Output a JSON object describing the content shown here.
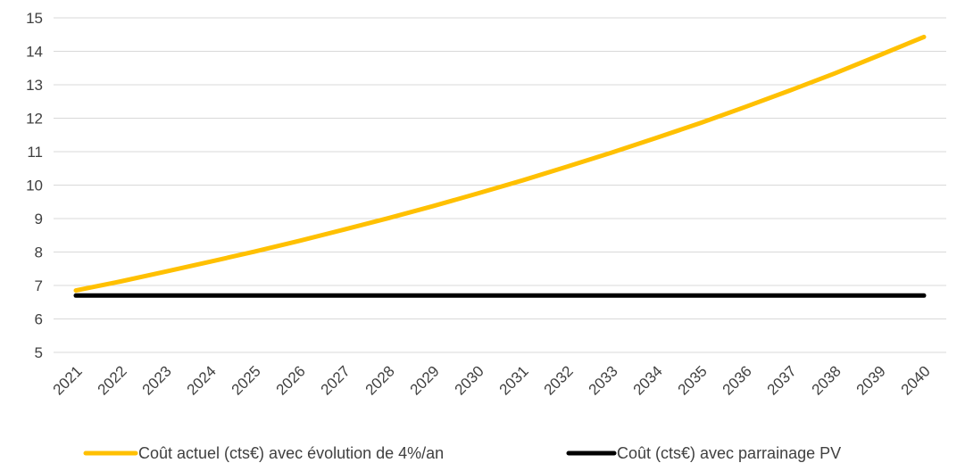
{
  "chart_data": {
    "type": "line",
    "title": "",
    "xlabel": "",
    "ylabel": "",
    "ylim": [
      5,
      15
    ],
    "y_ticks": [
      "5",
      "6",
      "7",
      "8",
      "9",
      "10",
      "11",
      "12",
      "13",
      "14",
      "15"
    ],
    "categories": [
      "2021",
      "2022",
      "2023",
      "2024",
      "2025",
      "2026",
      "2027",
      "2028",
      "2029",
      "2030",
      "2031",
      "2032",
      "2033",
      "2034",
      "2035",
      "2036",
      "2037",
      "2038",
      "2039",
      "2040"
    ],
    "grid": true,
    "legend_position": "bottom",
    "series": [
      {
        "name": "Coût actuel (cts€) avec évolution de 4%/an",
        "color": "#FFC000",
        "values": [
          6.85,
          7.12,
          7.41,
          7.71,
          8.01,
          8.33,
          8.67,
          9.01,
          9.37,
          9.75,
          10.14,
          10.55,
          10.97,
          11.41,
          11.86,
          12.34,
          12.83,
          13.34,
          13.88,
          14.43
        ]
      },
      {
        "name": "Coût (cts€) avec parrainage PV",
        "color": "#000000",
        "values": [
          6.7,
          6.7,
          6.7,
          6.7,
          6.7,
          6.7,
          6.7,
          6.7,
          6.7,
          6.7,
          6.7,
          6.7,
          6.7,
          6.7,
          6.7,
          6.7,
          6.7,
          6.7,
          6.7,
          6.7
        ]
      }
    ]
  }
}
